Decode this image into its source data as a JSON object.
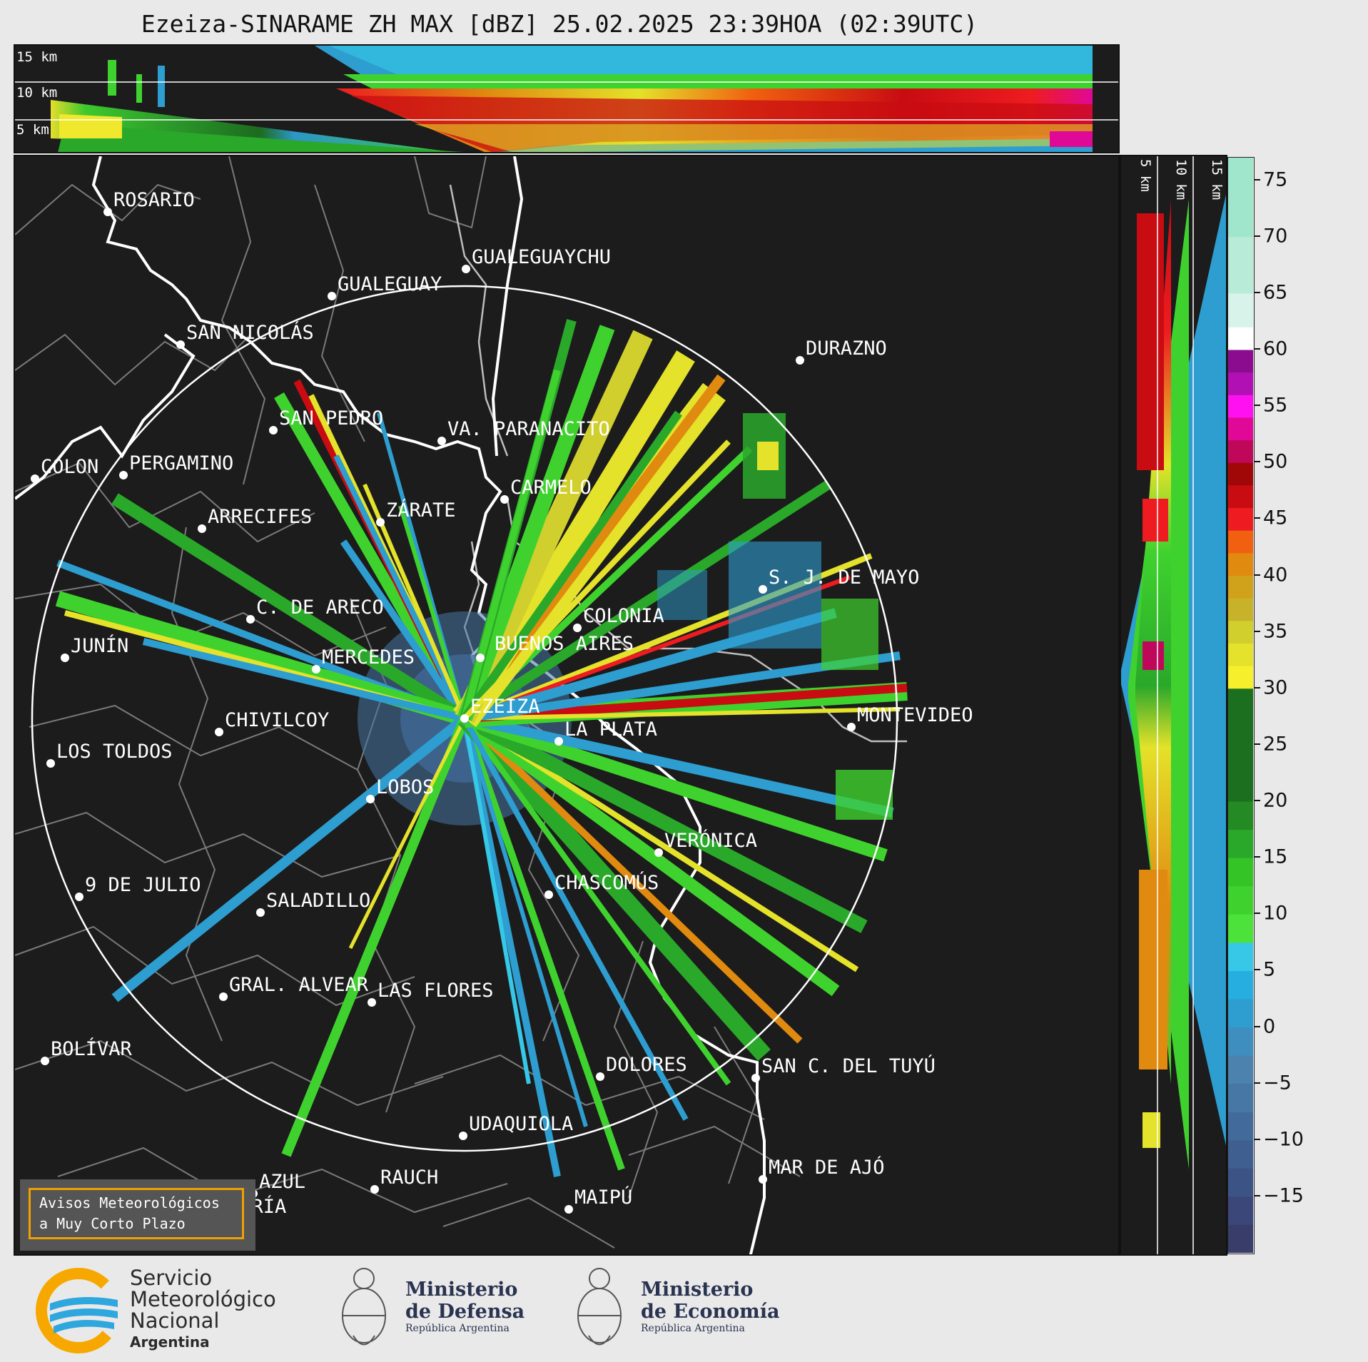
{
  "title": "Ezeiza-SINARAME ZH MAX [dBZ] 25.02.2025 23:39HOA (02:39UTC)",
  "top_profile": {
    "height_labels": [
      "15 km",
      "10 km",
      "5 km"
    ]
  },
  "side_profile": {
    "height_labels": [
      "5 km",
      "10 km",
      "15 km"
    ]
  },
  "colorbar": {
    "ticks": [
      "75",
      "70",
      "65",
      "60",
      "55",
      "50",
      "45",
      "40",
      "35",
      "30",
      "25",
      "20",
      "15",
      "10",
      "5",
      "0",
      "−5",
      "−10",
      "−15"
    ],
    "range": [
      -20,
      77
    ],
    "palette": [
      "#383d6a",
      "#3a4778",
      "#3c5385",
      "#3f5f91",
      "#426b9b",
      "#4777a5",
      "#4b82ae",
      "#3e8fc0",
      "#2e9dd0",
      "#27aee0",
      "#36c8e6",
      "#4de23a",
      "#3fd22e",
      "#35c426",
      "#2aa82a",
      "#238a24",
      "#1c6f1e",
      "#f6ef2c",
      "#e4e22a",
      "#d0cf2e",
      "#c8b22a",
      "#d0a21c",
      "#e08a10",
      "#f06010",
      "#ee1c20",
      "#c80c12",
      "#a00808",
      "#c0085a",
      "#e00896",
      "#ff10f0",
      "#b010b4",
      "#8c0c90",
      "#ffffff",
      "#d8f4ea",
      "#b8ebd8",
      "#a0e6cc",
      "#8ce0c0"
    ],
    "boundaries": [
      -20,
      -17.5,
      -15,
      -12.5,
      -10,
      -7.5,
      -5,
      -2.5,
      0,
      2.5,
      5,
      7.5,
      10,
      12.5,
      15,
      17.5,
      20,
      30,
      32,
      34,
      36,
      38,
      40,
      42,
      44,
      46,
      48,
      50,
      52,
      54,
      56,
      58,
      60,
      62,
      65,
      70,
      77
    ]
  },
  "cities": [
    {
      "name": "ROSARIO"
    },
    {
      "name": "GUALEGUAYCHU"
    },
    {
      "name": "GUALEGUAY"
    },
    {
      "name": "SAN NICOLÁS"
    },
    {
      "name": "DURAZNO"
    },
    {
      "name": "SAN PEDRO"
    },
    {
      "name": "VA. PARANACITO"
    },
    {
      "name": "COLON"
    },
    {
      "name": "PERGAMINO"
    },
    {
      "name": "CARMELO"
    },
    {
      "name": "ZÁRATE"
    },
    {
      "name": "ARRECIFES"
    },
    {
      "name": "S. J. DE MAYO"
    },
    {
      "name": "C. DE ARECO"
    },
    {
      "name": "COLONIA"
    },
    {
      "name": "JUNÍN"
    },
    {
      "name": "BUENOS AIRES"
    },
    {
      "name": "MERCEDES"
    },
    {
      "name": "EZEIZA"
    },
    {
      "name": "MONTEVIDEO"
    },
    {
      "name": "CHIVILCOY"
    },
    {
      "name": "LA PLATA"
    },
    {
      "name": "LOS TOLDOS"
    },
    {
      "name": "LOBOS"
    },
    {
      "name": "VERÓNICA"
    },
    {
      "name": "9 DE JULIO"
    },
    {
      "name": "CHASCOMÚS"
    },
    {
      "name": "SALADILLO"
    },
    {
      "name": "GRAL. ALVEAR"
    },
    {
      "name": "LAS FLORES"
    },
    {
      "name": "BOLÍVAR"
    },
    {
      "name": "DOLORES"
    },
    {
      "name": "SAN C. DEL TUYÚ"
    },
    {
      "name": "UDAQUIOLA"
    },
    {
      "name": "MAR DE AJÓ"
    },
    {
      "name": "RAUCH"
    },
    {
      "name": "AZUL"
    },
    {
      "name": "MAIPÚ"
    },
    {
      "name": "OLAVARRÍA"
    }
  ],
  "warning_box": {
    "line1": "Avisos Meteorológicos",
    "line2": "a Muy Corto Plazo"
  },
  "logos": {
    "smn": {
      "line1": "Servicio",
      "line2": "Meteorológico",
      "line3": "Nacional",
      "line4": "Argentina"
    },
    "defensa": {
      "line1": "Ministerio",
      "line2": "de Defensa",
      "line3": "República Argentina"
    },
    "economia": {
      "line1": "Ministerio",
      "line2": "de Economía",
      "line3": "República Argentina"
    }
  },
  "colors": {
    "background": "#1c1c1c",
    "page": "#e9e9e9",
    "warning_border": "#f0a000",
    "smn_orange": "#f7a800",
    "smn_blue": "#2ea6de"
  }
}
